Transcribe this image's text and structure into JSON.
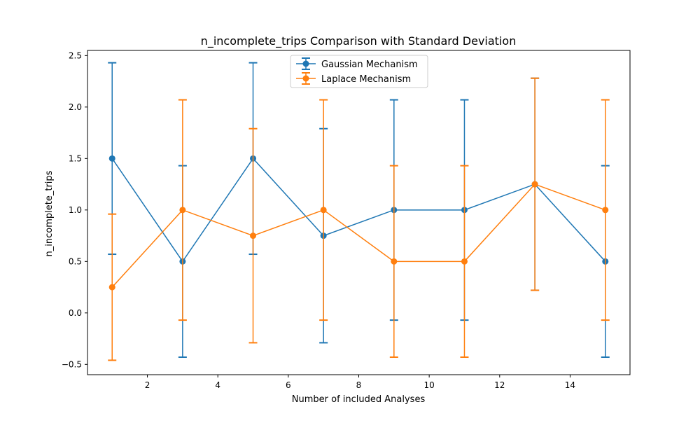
{
  "chart_data": {
    "type": "line",
    "title": "n_incomplete_trips Comparison with Standard Deviation",
    "xlabel": "Number of included Analyses",
    "ylabel": "n_incomplete_trips",
    "xlim": [
      0.3,
      15.7
    ],
    "ylim": [
      -0.6,
      2.55
    ],
    "xticks": [
      2,
      4,
      6,
      8,
      10,
      12,
      14
    ],
    "yticks": [
      -0.5,
      0.0,
      0.5,
      1.0,
      1.5,
      2.0,
      2.5
    ],
    "ytick_labels": [
      "−0.5",
      "0.0",
      "0.5",
      "1.0",
      "1.5",
      "2.0",
      "2.5"
    ],
    "grid": false,
    "legend_position": "top-center",
    "series": [
      {
        "name": "Gaussian Mechanism",
        "color": "#1f77b4",
        "x": [
          1,
          3,
          5,
          7,
          9,
          11,
          13,
          15
        ],
        "y": [
          1.5,
          0.5,
          1.5,
          0.75,
          1.0,
          1.0,
          1.25,
          0.5
        ],
        "std": [
          0.93,
          0.93,
          0.93,
          1.04,
          1.07,
          1.07,
          1.03,
          0.93
        ]
      },
      {
        "name": "Laplace Mechanism",
        "color": "#ff7f0e",
        "x": [
          1,
          3,
          5,
          7,
          9,
          11,
          13,
          15
        ],
        "y": [
          0.25,
          1.0,
          0.75,
          1.0,
          0.5,
          0.5,
          1.25,
          1.0
        ],
        "std": [
          0.71,
          1.07,
          1.04,
          1.07,
          0.93,
          0.93,
          1.03,
          1.07
        ]
      }
    ]
  }
}
